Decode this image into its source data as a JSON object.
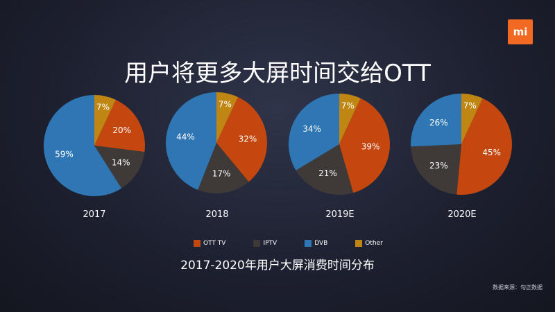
{
  "title": "用户将更多大屏时间交给OTT",
  "logo_text": "mi",
  "subtitle": "2017-2020年用户大屏消费时间分布",
  "source": "数据来源：勾正数据",
  "colors": {
    "OTT TV": "#c4470f",
    "IPTV": "#3f3a38",
    "DVB": "#2f76b4",
    "Other": "#bf8613"
  },
  "chart_data": {
    "type": "pie",
    "categories": [
      "2017",
      "2018",
      "2019E",
      "2020E"
    ],
    "legend": [
      "OTT TV",
      "IPTV",
      "DVB",
      "Other"
    ],
    "legend_position": "bottom",
    "series": [
      {
        "label": "2017",
        "slices": [
          {
            "name": "OTT TV",
            "value": 20,
            "text": "20%"
          },
          {
            "name": "IPTV",
            "value": 14,
            "text": "14%"
          },
          {
            "name": "DVB",
            "value": 59,
            "text": "59%"
          },
          {
            "name": "Other",
            "value": 7,
            "text": "7%"
          }
        ]
      },
      {
        "label": "2018",
        "slices": [
          {
            "name": "OTT TV",
            "value": 32,
            "text": "32%"
          },
          {
            "name": "IPTV",
            "value": 17,
            "text": "17%"
          },
          {
            "name": "DVB",
            "value": 44,
            "text": "44%"
          },
          {
            "name": "Other",
            "value": 7,
            "text": "7%"
          }
        ]
      },
      {
        "label": "2019E",
        "slices": [
          {
            "name": "OTT TV",
            "value": 39,
            "text": "39%"
          },
          {
            "name": "IPTV",
            "value": 21,
            "text": "21%"
          },
          {
            "name": "DVB",
            "value": 34,
            "text": "34%"
          },
          {
            "name": "Other",
            "value": 7,
            "text": "7%"
          }
        ]
      },
      {
        "label": "2020E",
        "slices": [
          {
            "name": "OTT TV",
            "value": 45,
            "text": "45%"
          },
          {
            "name": "IPTV",
            "value": 23,
            "text": "23%"
          },
          {
            "name": "DVB",
            "value": 26,
            "text": "26%"
          },
          {
            "name": "Other",
            "value": 7,
            "text": "7%"
          }
        ]
      }
    ]
  }
}
